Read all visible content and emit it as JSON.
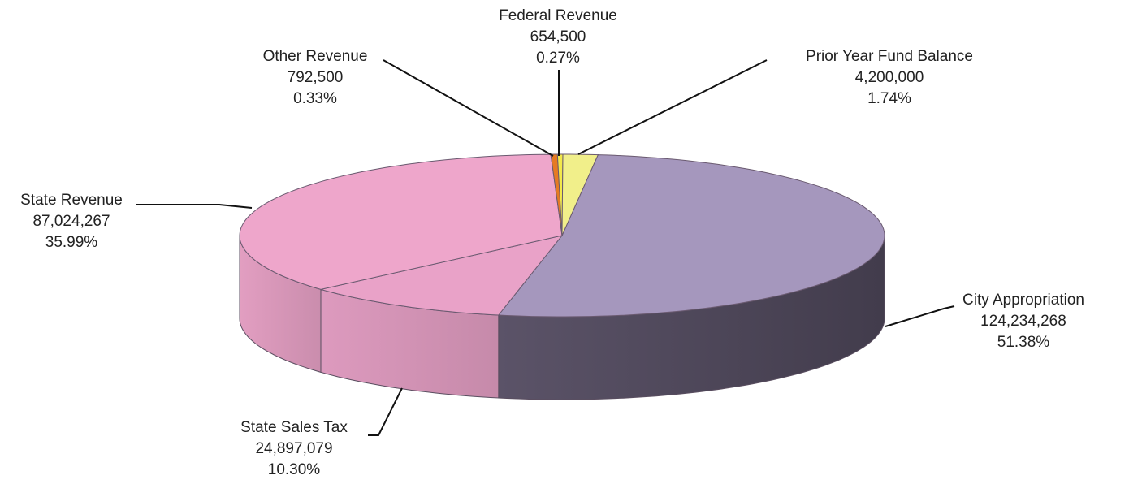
{
  "chart_data": {
    "type": "pie3d",
    "categories": [
      "City Appropriation",
      "State Sales Tax",
      "State Revenue",
      "Other Revenue",
      "Federal Revenue",
      "Prior Year Fund Balance"
    ],
    "values": [
      124234268,
      24897079,
      87024267,
      792500,
      654500,
      4200000
    ],
    "value_labels": [
      "124,234,268",
      "24,897,079",
      "87,024,267",
      "792,500",
      "654,500",
      "4,200,000"
    ],
    "percents": [
      51.38,
      10.3,
      35.99,
      0.33,
      0.27,
      1.74
    ],
    "percent_labels": [
      "51.38%",
      "10.30%",
      "35.99%",
      "0.33%",
      "0.27%",
      "1.74%"
    ],
    "colors": [
      "#a597bd",
      "#e9a2c8",
      "#eea6cb",
      "#e67a22",
      "#f2e84a",
      "#f1ef8a"
    ]
  }
}
